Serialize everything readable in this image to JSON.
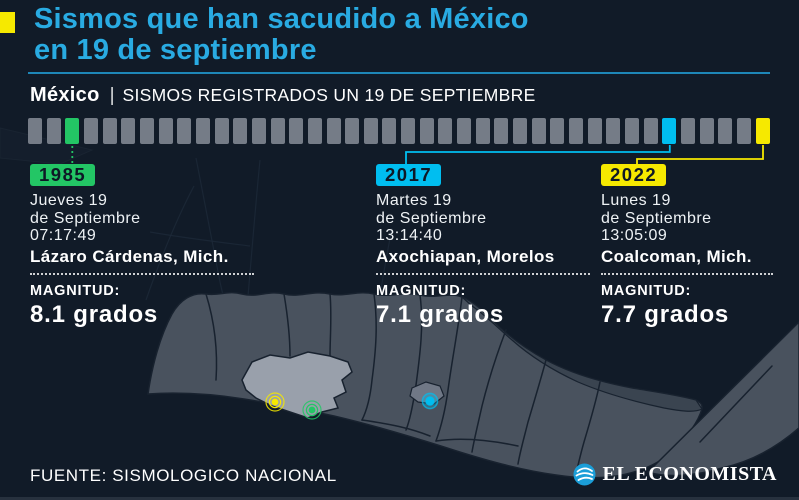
{
  "title": {
    "line1": "Sismos que han sacudido a México",
    "line2": "en 19 de septiembre"
  },
  "header": {
    "country": "México",
    "separator": "|",
    "subtitle": "SISMOS REGISTRADOS UN 19 DE SEPTIEMBRE"
  },
  "timeline": {
    "total_squares": 40,
    "square_color": "#757C87",
    "events": [
      {
        "year": "1985",
        "index": 2,
        "color": "#23C665"
      },
      {
        "year": "2017",
        "index": 34,
        "color": "#00BEF0"
      },
      {
        "year": "2022",
        "index": 39,
        "color": "#F6E900"
      }
    ]
  },
  "events": [
    {
      "year": "1985",
      "badge_color": "#23C665",
      "date_line1": "Jueves 19",
      "date_line2": "de Septiembre",
      "time": "07:17:49",
      "location": "Lázaro Cárdenas, Mich.",
      "magnitude_label": "MAGNITUD:",
      "magnitude_value": "8.1 grados"
    },
    {
      "year": "2017",
      "badge_color": "#00BEF0",
      "date_line1": "Martes 19",
      "date_line2": "de Septiembre",
      "time": "13:14:40",
      "location": "Axochiapan, Morelos",
      "magnitude_label": "MAGNITUD:",
      "magnitude_value": "7.1 grados"
    },
    {
      "year": "2022",
      "badge_color": "#F6E900",
      "date_line1": "Lunes 19",
      "date_line2": "de Septiembre",
      "time": "13:05:09",
      "location": "Coalcoman, Mich.",
      "magnitude_label": "MAGNITUD:",
      "magnitude_value": "7.7 grados"
    }
  ],
  "map": {
    "markers": [
      {
        "name": "epicenter-2022",
        "color": "#F6E900"
      },
      {
        "name": "epicenter-1985",
        "color": "#23C665"
      },
      {
        "name": "epicenter-2017",
        "color": "#00BEF0"
      }
    ]
  },
  "footer": {
    "source": "FUENTE: SISMOLOGICO NACIONAL",
    "brand": "EL ECONOMISTA"
  },
  "colors": {
    "background": "#111B28",
    "title_accent": "#29ABE2",
    "rule": "#1E87B8",
    "square_gray": "#757C87",
    "green": "#23C665",
    "cyan": "#00BEF0",
    "yellow": "#F6E900",
    "badge_text": "#0E1826",
    "land": "#49525E",
    "land_dark": "#3A4450",
    "land_highlight": "#99A0AB",
    "border": "#18222F",
    "logo_blue": "#1B9ED8"
  }
}
